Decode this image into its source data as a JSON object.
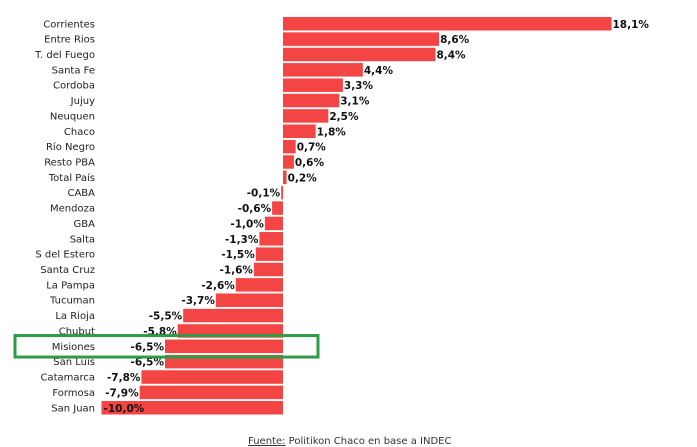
{
  "chart_data": {
    "type": "bar",
    "orientation": "horizontal",
    "categories": [
      "Corrientes",
      "Entre Rios",
      "T. del Fuego",
      "Santa Fe",
      "Cordoba",
      "Jujuy",
      "Neuquen",
      "Chaco",
      "Río Negro",
      "Resto PBA",
      "Total País",
      "CABA",
      "Mendoza",
      "GBA",
      "Salta",
      "S del Estero",
      "Santa Cruz",
      "La Pampa",
      "Tucuman",
      "La Rioja",
      "Chubut",
      "Misiones",
      "San Luis",
      "Catamarca",
      "Formosa",
      "San Juan"
    ],
    "values": [
      18.1,
      8.6,
      8.4,
      4.4,
      3.3,
      3.1,
      2.5,
      1.8,
      0.7,
      0.6,
      0.2,
      -0.1,
      -0.6,
      -1.0,
      -1.3,
      -1.5,
      -1.6,
      -2.6,
      -3.7,
      -5.5,
      -5.8,
      -6.5,
      -6.5,
      -7.8,
      -7.9,
      -10.0
    ],
    "labels": [
      "18,1%",
      "8,6%",
      "8,4%",
      "4,4%",
      "3,3%",
      "3,1%",
      "2,5%",
      "1,8%",
      "0,7%",
      "0,6%",
      "0,2%",
      "-0,1%",
      "-0,6%",
      "-1,0%",
      "-1,3%",
      "-1,5%",
      "-1,6%",
      "-2,6%",
      "-3,7%",
      "-5,5%",
      "-5,8%",
      "-6,5%",
      "-6,5%",
      "-7,8%",
      "-7,9%",
      "-10,0%"
    ],
    "highlight": "Misiones",
    "bar_color": "#f44545",
    "highlight_color": "#2e9b47",
    "xlim": [
      -10,
      18.1
    ],
    "grid": false,
    "source": {
      "label": "Fuente:",
      "text": "Politikon Chaco en base a INDEC"
    }
  }
}
